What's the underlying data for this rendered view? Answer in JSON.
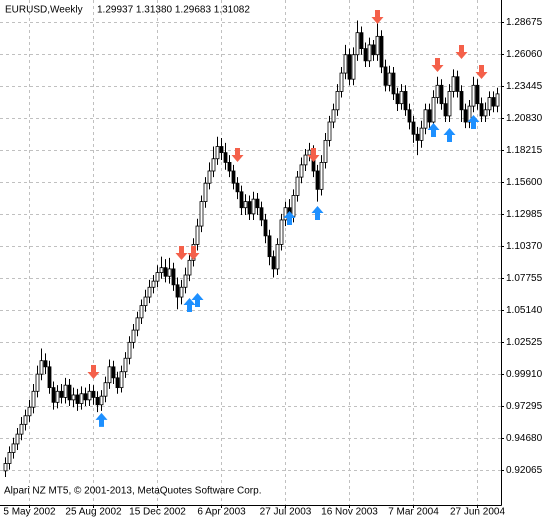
{
  "chart_data": {
    "type": "candlestick",
    "title": "EURUSD,Weekly",
    "subtitle": "1.29937 1.31380 1.29683 1.31082",
    "annotation": "Alpari NZ MT5, © 2001-2013, MetaQuotes Software Corp.",
    "categories": [
      null,
      null,
      null,
      null,
      null,
      null,
      "5 May 2002",
      null,
      null,
      null,
      null,
      null,
      null,
      null,
      null,
      null,
      null,
      null,
      null,
      null,
      null,
      null,
      "25 Aug 2002",
      null,
      null,
      null,
      null,
      null,
      null,
      null,
      null,
      null,
      null,
      null,
      null,
      null,
      null,
      null,
      "15 Dec 2002",
      null,
      null,
      null,
      null,
      null,
      null,
      null,
      null,
      null,
      null,
      null,
      null,
      null,
      null,
      null,
      "6 Apr 2003",
      null,
      null,
      null,
      null,
      null,
      null,
      null,
      null,
      null,
      null,
      null,
      null,
      null,
      null,
      null,
      "27 Jul 2003",
      null,
      null,
      null,
      null,
      null,
      null,
      null,
      null,
      null,
      null,
      null,
      null,
      null,
      null,
      null,
      "16 Nov 2003",
      null,
      null,
      null,
      null,
      null,
      null,
      null,
      null,
      null,
      null,
      null,
      null,
      null,
      null,
      null,
      "7 Mar 2004",
      null,
      null,
      null,
      null,
      null,
      null,
      null,
      null,
      null,
      null,
      null,
      null,
      null,
      null,
      null,
      "27 Jun 2004",
      null,
      null,
      null,
      null,
      null
    ],
    "open": [
      0.92,
      0.926,
      0.935,
      0.942,
      0.95,
      0.958,
      0.965,
      0.972,
      0.985,
      0.999,
      1.01,
      1.005,
      0.988,
      0.976,
      0.985,
      0.98,
      0.99,
      0.978,
      0.982,
      0.975,
      0.983,
      0.978,
      0.985,
      0.98,
      0.974,
      0.981,
      0.992,
      1.005,
      0.996,
      0.988,
      1.001,
      1.012,
      1.025,
      1.035,
      1.045,
      1.055,
      1.062,
      1.07,
      1.075,
      1.082,
      1.086,
      1.079,
      1.085,
      1.072,
      1.062,
      1.07,
      1.08,
      1.092,
      1.105,
      1.12,
      1.14,
      1.155,
      1.165,
      1.175,
      1.185,
      1.18,
      1.172,
      1.165,
      1.155,
      1.148,
      1.135,
      1.14,
      1.13,
      1.142,
      1.135,
      1.125,
      1.112,
      1.095,
      1.085,
      1.105,
      1.125,
      1.135,
      1.128,
      1.145,
      1.16,
      1.17,
      1.178,
      1.182,
      1.165,
      1.15,
      1.172,
      1.19,
      1.205,
      1.215,
      1.23,
      1.245,
      1.26,
      1.24,
      1.26,
      1.278,
      1.265,
      1.255,
      1.268,
      1.26,
      1.275,
      1.25,
      1.235,
      1.245,
      1.228,
      1.22,
      1.23,
      1.215,
      1.205,
      1.195,
      1.19,
      1.2,
      1.215,
      1.205,
      1.225,
      1.235,
      1.22,
      1.21,
      1.23,
      1.242,
      1.23,
      1.215,
      1.205,
      1.218,
      1.235,
      1.22,
      1.21,
      1.215,
      1.225,
      1.218
    ],
    "high": [
      0.931,
      0.94,
      0.947,
      0.955,
      0.964,
      0.97,
      0.978,
      0.991,
      1.006,
      1.02,
      1.016,
      1.01,
      0.993,
      0.99,
      0.991,
      0.996,
      0.995,
      0.988,
      0.987,
      0.989,
      0.988,
      0.991,
      0.99,
      0.985,
      0.986,
      0.997,
      1.011,
      1.01,
      1.001,
      1.006,
      1.017,
      1.03,
      1.04,
      1.05,
      1.06,
      1.068,
      1.076,
      1.08,
      1.088,
      1.095,
      1.093,
      1.094,
      1.09,
      1.078,
      1.076,
      1.086,
      1.098,
      1.11,
      1.126,
      1.145,
      1.16,
      1.172,
      1.185,
      1.193,
      1.192,
      1.188,
      1.178,
      1.17,
      1.16,
      1.153,
      1.146,
      1.145,
      1.148,
      1.147,
      1.14,
      1.13,
      1.117,
      1.1,
      1.11,
      1.13,
      1.14,
      1.142,
      1.15,
      1.165,
      1.176,
      1.183,
      1.188,
      1.186,
      1.17,
      1.178,
      1.196,
      1.21,
      1.22,
      1.236,
      1.25,
      1.268,
      1.265,
      1.266,
      1.288,
      1.283,
      1.27,
      1.274,
      1.272,
      1.287,
      1.28,
      1.256,
      1.251,
      1.25,
      1.233,
      1.236,
      1.235,
      1.22,
      1.21,
      1.201,
      1.206,
      1.22,
      1.22,
      1.231,
      1.242,
      1.24,
      1.225,
      1.236,
      1.248,
      1.247,
      1.235,
      1.22,
      1.223,
      1.242,
      1.24,
      1.225,
      1.221,
      1.23,
      1.23,
      1.233
    ],
    "low": [
      0.915,
      0.921,
      0.93,
      0.937,
      0.945,
      0.953,
      0.96,
      0.967,
      0.98,
      0.994,
      0.999,
      0.983,
      0.97,
      0.971,
      0.975,
      0.975,
      0.973,
      0.972,
      0.969,
      0.97,
      0.973,
      0.973,
      0.974,
      0.968,
      0.969,
      0.976,
      0.987,
      0.991,
      0.983,
      0.984,
      0.996,
      1.007,
      1.02,
      1.03,
      1.04,
      1.05,
      1.057,
      1.065,
      1.07,
      1.077,
      1.074,
      1.073,
      1.067,
      1.052,
      1.056,
      1.065,
      1.075,
      1.087,
      1.1,
      1.115,
      1.135,
      1.15,
      1.16,
      1.17,
      1.174,
      1.166,
      1.16,
      1.15,
      1.142,
      1.129,
      1.129,
      1.125,
      1.125,
      1.129,
      1.12,
      1.106,
      1.088,
      1.078,
      1.08,
      1.1,
      1.12,
      1.122,
      1.123,
      1.14,
      1.155,
      1.165,
      1.173,
      1.16,
      1.14,
      1.145,
      1.167,
      1.185,
      1.2,
      1.21,
      1.225,
      1.24,
      1.235,
      1.235,
      1.255,
      1.26,
      1.25,
      1.25,
      1.255,
      1.255,
      1.245,
      1.23,
      1.23,
      1.223,
      1.214,
      1.215,
      1.21,
      1.199,
      1.188,
      1.178,
      1.184,
      1.195,
      1.2,
      1.2,
      1.22,
      1.215,
      1.205,
      1.205,
      1.225,
      1.225,
      1.205,
      1.2,
      1.2,
      1.213,
      1.215,
      1.205,
      1.205,
      1.21,
      1.213,
      1.213
    ],
    "close": [
      0.926,
      0.935,
      0.942,
      0.95,
      0.958,
      0.965,
      0.972,
      0.985,
      0.999,
      1.01,
      1.005,
      0.988,
      0.976,
      0.985,
      0.98,
      0.99,
      0.978,
      0.982,
      0.975,
      0.983,
      0.978,
      0.985,
      0.98,
      0.974,
      0.981,
      0.992,
      1.005,
      0.996,
      0.988,
      1.001,
      1.012,
      1.025,
      1.035,
      1.045,
      1.055,
      1.062,
      1.07,
      1.075,
      1.082,
      1.086,
      1.079,
      1.085,
      1.072,
      1.062,
      1.07,
      1.08,
      1.092,
      1.105,
      1.12,
      1.14,
      1.155,
      1.165,
      1.175,
      1.185,
      1.18,
      1.172,
      1.165,
      1.155,
      1.148,
      1.135,
      1.14,
      1.13,
      1.142,
      1.135,
      1.125,
      1.112,
      1.095,
      1.085,
      1.105,
      1.125,
      1.135,
      1.128,
      1.145,
      1.16,
      1.17,
      1.178,
      1.182,
      1.165,
      1.15,
      1.172,
      1.19,
      1.205,
      1.215,
      1.23,
      1.245,
      1.26,
      1.24,
      1.26,
      1.278,
      1.265,
      1.255,
      1.268,
      1.26,
      1.275,
      1.25,
      1.235,
      1.245,
      1.228,
      1.22,
      1.23,
      1.215,
      1.205,
      1.195,
      1.19,
      1.2,
      1.215,
      1.205,
      1.225,
      1.235,
      1.22,
      1.21,
      1.23,
      1.242,
      1.23,
      1.215,
      1.205,
      1.218,
      1.235,
      1.22,
      1.21,
      1.215,
      1.225,
      1.218,
      1.228
    ],
    "down_arrows": {
      "color": "#f4604a",
      "index": [
        22,
        44,
        47,
        58,
        77,
        93,
        108,
        114,
        119
      ],
      "values": [
        1.0008,
        1.098,
        1.098,
        1.1781,
        1.1781,
        1.2908,
        1.2516,
        1.2622,
        1.2459
      ]
    },
    "up_arrows": {
      "color": "#1e90ff",
      "index": [
        24,
        46,
        48,
        71,
        78,
        107,
        111,
        117
      ],
      "values": [
        0.9616,
        1.0555,
        1.0596,
        1.1266,
        1.1307,
        1.1985,
        1.1944,
        1.205
      ]
    },
    "ylim": [
      0.8921,
      1.3047
    ],
    "yticks": [
      1.28675,
      {
        "value": 1.2606,
        "label": "1.26060"
      },
      1.23445,
      {
        "value": 1.2083,
        "label": "1.20830"
      },
      1.18215,
      {
        "value": 1.156,
        "label": "1.15600"
      },
      1.12985,
      {
        "value": 1.1037,
        "label": "1.10370"
      },
      1.07755,
      {
        "value": 1.0514,
        "label": "1.05140"
      },
      1.02525,
      {
        "value": 0.9991,
        "label": "0.99910"
      },
      0.97295,
      {
        "value": 0.9468,
        "label": "0.94680"
      },
      0.92065
    ],
    "grid": true
  }
}
